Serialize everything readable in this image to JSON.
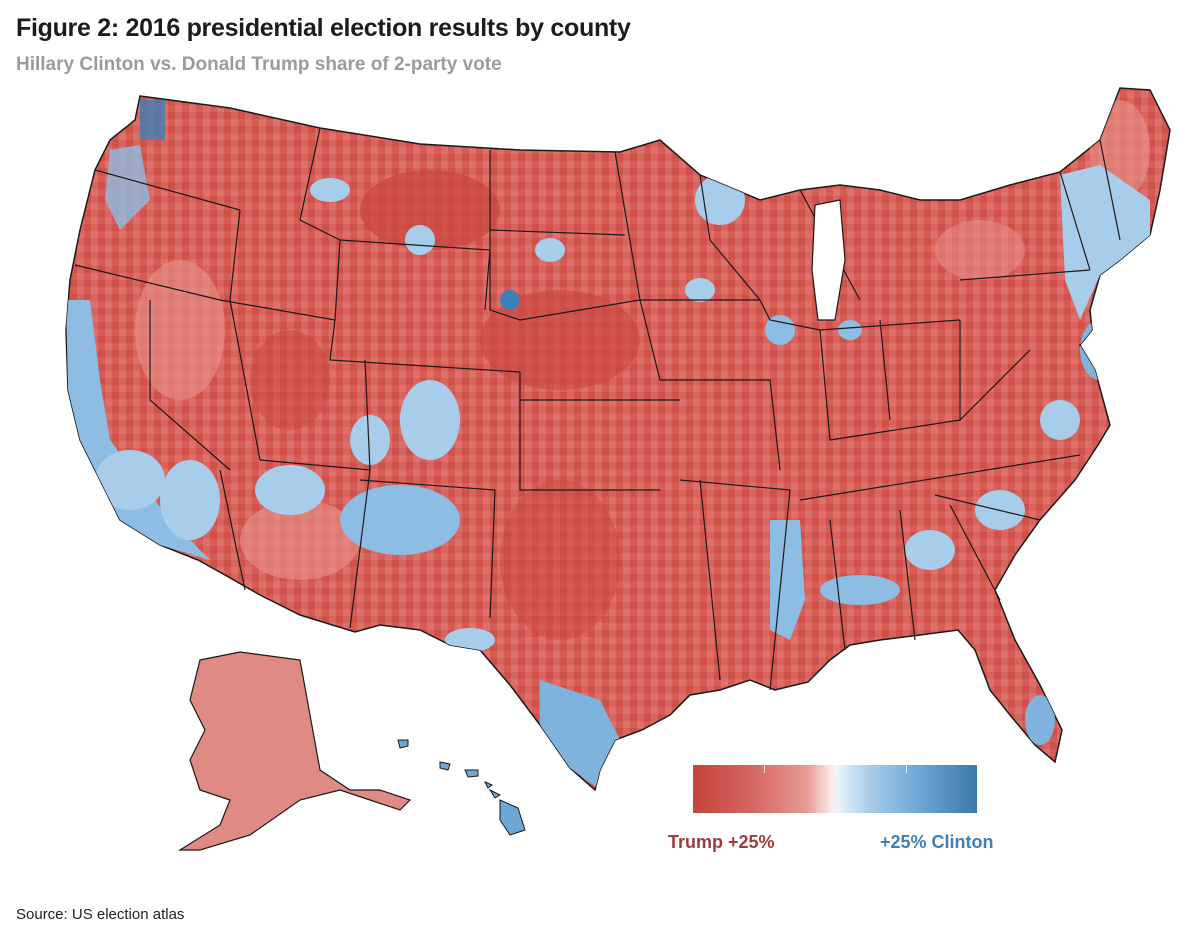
{
  "header": {
    "title": "Figure 2: 2016 presidential election results by county",
    "subtitle": "Hillary Clinton vs. Donald Trump share of 2-party vote"
  },
  "legend": {
    "left_label": "Trump +25%",
    "right_label": "+25% Clinton",
    "colors": {
      "trump_strong": "#c2443b",
      "trump_light": "#e79a94",
      "neutral": "#fbecea",
      "clinton_light": "#a8cdea",
      "clinton_strong": "#3978aa"
    }
  },
  "footer": {
    "source": "Source: US election atlas"
  },
  "map_colors": {
    "trump_base": "#d9645e",
    "trump_dark": "#c8473f",
    "trump_light": "#e8938d",
    "clinton_light": "#a8cdea",
    "clinton_mid": "#7fb2dc",
    "clinton_dark": "#3f7fb6",
    "border": "#1a1a1a"
  }
}
